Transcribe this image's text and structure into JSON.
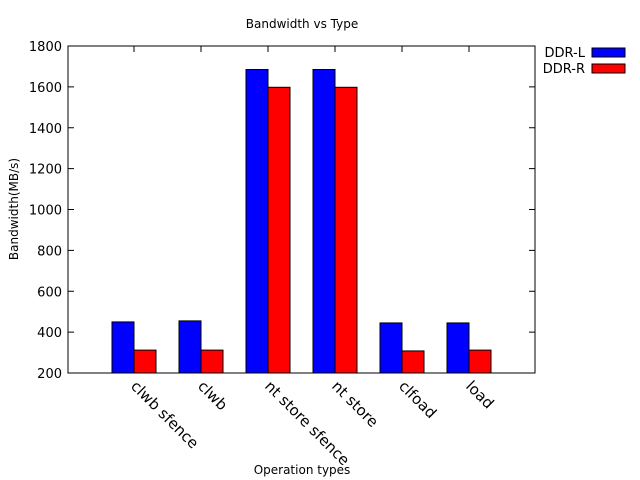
{
  "chart_data": {
    "type": "bar",
    "title": "Bandwidth vs Type",
    "xlabel": "Operation types",
    "ylabel": "Bandwidth(MB/s)",
    "categories": [
      "clwb sfence",
      "clwb",
      "nt store sfence",
      "nt store",
      "clfoad",
      "load"
    ],
    "series": [
      {
        "name": "DDR-L",
        "values": [
          450,
          455,
          1685,
          1685,
          445,
          445
        ],
        "color": "#0000ff"
      },
      {
        "name": "DDR-R",
        "values": [
          312,
          312,
          1598,
          1598,
          308,
          312
        ],
        "color": "#ff0000"
      }
    ],
    "ylim": [
      200,
      1800
    ],
    "yticks": [
      "200",
      "400",
      "600",
      "800",
      "1000",
      "1200",
      "1400",
      "1600",
      "1800"
    ],
    "grid": false,
    "legend_position": "top-right-outside"
  }
}
